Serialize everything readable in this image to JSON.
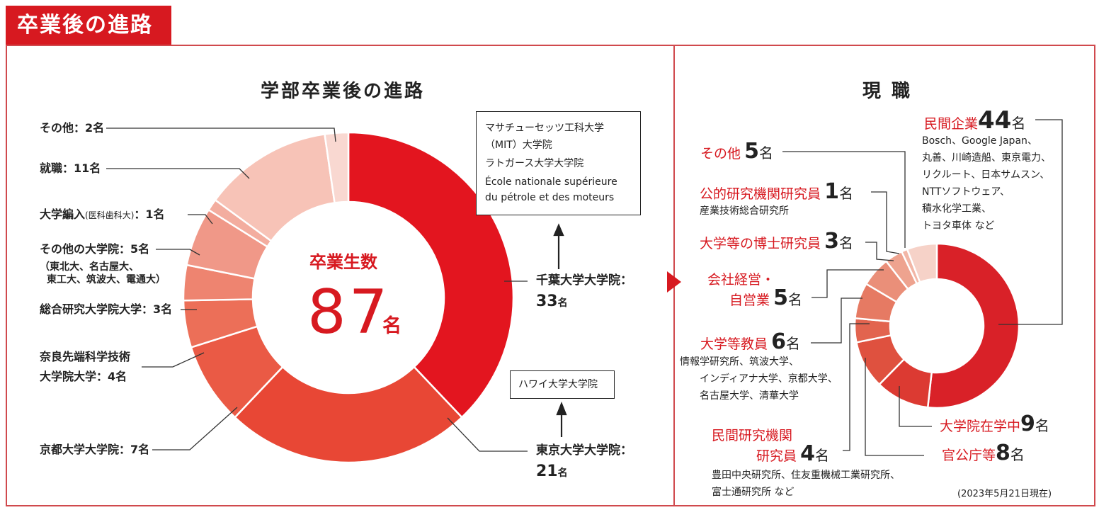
{
  "page_title": "卒業後の進路",
  "left": {
    "title": "学部卒業後の進路",
    "center_label": "卒業生数",
    "center_value": "87",
    "center_unit": "名",
    "labels": {
      "other": "その他：2名",
      "employment": "就職：11名",
      "transfer": "大学編入",
      "transfer_sub": "(医科歯科大)",
      "transfer_count": "：1名",
      "other_grad": "その他の大学院：5名",
      "other_grad_note1": "（東北大、名古屋大、",
      "other_grad_note2": "東工大、筑波大、電通大）",
      "sokendai": "総合研究大学院大学：3名",
      "naist1": "奈良先端科学技術",
      "naist2": "大学院大学：4名",
      "kyoto": "京都大学大学院：7名",
      "chiba": "千葉大学大学院：",
      "chiba_count": "33",
      "chiba_unit": "名",
      "tokyo": "東京大学大学院：",
      "tokyo_count": "21",
      "tokyo_unit": "名"
    },
    "box1": [
      "マサチューセッツ工科大学",
      "（MIT）大学院",
      "ラトガース大学大学院",
      "École nationale supérieure",
      "du pétrole et des moteurs"
    ],
    "box2": "ハワイ大学大学院"
  },
  "right": {
    "title": "現 職",
    "private": {
      "label": "民間企業",
      "count": "44",
      "unit": "名",
      "note": [
        "Bosch、Google Japan、",
        "丸善、川崎造船、東京電力、",
        "リクルート、日本サムスン、",
        "NTTソフトウェア、",
        "積水化学工業、",
        "トヨタ車体 など"
      ]
    },
    "other": {
      "label": "その他",
      "count": "5",
      "unit": "名"
    },
    "public_res": {
      "label": "公的研究機関研究員",
      "count": "1",
      "unit": "名",
      "note": "産業技術総合研究所"
    },
    "postdoc": {
      "label": "大学等の博士研究員",
      "count": "3",
      "unit": "名"
    },
    "exec": {
      "label1": "会社経営・",
      "label2": "自営業",
      "count": "5",
      "unit": "名"
    },
    "faculty": {
      "label": "大学等教員",
      "count": "6",
      "unit": "名",
      "note": [
        "情報学研究所、筑波大学、",
        "インディアナ大学、京都大学、",
        "名古屋大学、清華大学"
      ]
    },
    "private_res": {
      "label1": "民間研究機関",
      "label2": "研究員",
      "count": "4",
      "unit": "名",
      "note": [
        "豊田中央研究所、住友重機械工業研究所、",
        "富士通研究所 など"
      ]
    },
    "grad_student": {
      "label": "大学院在学中",
      "count": "9",
      "unit": "名"
    },
    "government": {
      "label": "官公庁等",
      "count": "8",
      "unit": "名"
    },
    "date_note": "(2023年5月21日現在)"
  },
  "chart_data": [
    {
      "type": "pie",
      "title": "学部卒業後の進路",
      "unit": "名",
      "total": 87,
      "categories": [
        "千葉大学大学院",
        "東京大学大学院",
        "京都大学大学院",
        "奈良先端科学技術大学院大学",
        "総合研究大学院大学",
        "その他の大学院",
        "大学編入（医科歯科大）",
        "就職",
        "その他"
      ],
      "values": [
        33,
        21,
        7,
        4,
        3,
        5,
        1,
        11,
        2
      ],
      "colors": [
        "#e3151f",
        "#e84735",
        "#ea5a45",
        "#ec6f58",
        "#ee8470",
        "#f09888",
        "#f3ad9f",
        "#f7c3b7",
        "#f9d8d1"
      ]
    },
    {
      "type": "pie",
      "title": "現 職",
      "unit": "名",
      "categories": [
        "民間企業",
        "大学院在学中",
        "官公庁等",
        "民間研究機関研究員",
        "大学等教員",
        "会社経営・自営業",
        "大学等の博士研究員",
        "公的研究機関研究員",
        "その他"
      ],
      "values": [
        44,
        9,
        8,
        4,
        6,
        5,
        3,
        1,
        5
      ],
      "colors": [
        "#d92128",
        "#dc3a32",
        "#df513f",
        "#e2644f",
        "#e67a63",
        "#ea8f79",
        "#eea38f",
        "#f2b6a6",
        "#f6d2c8"
      ]
    }
  ]
}
